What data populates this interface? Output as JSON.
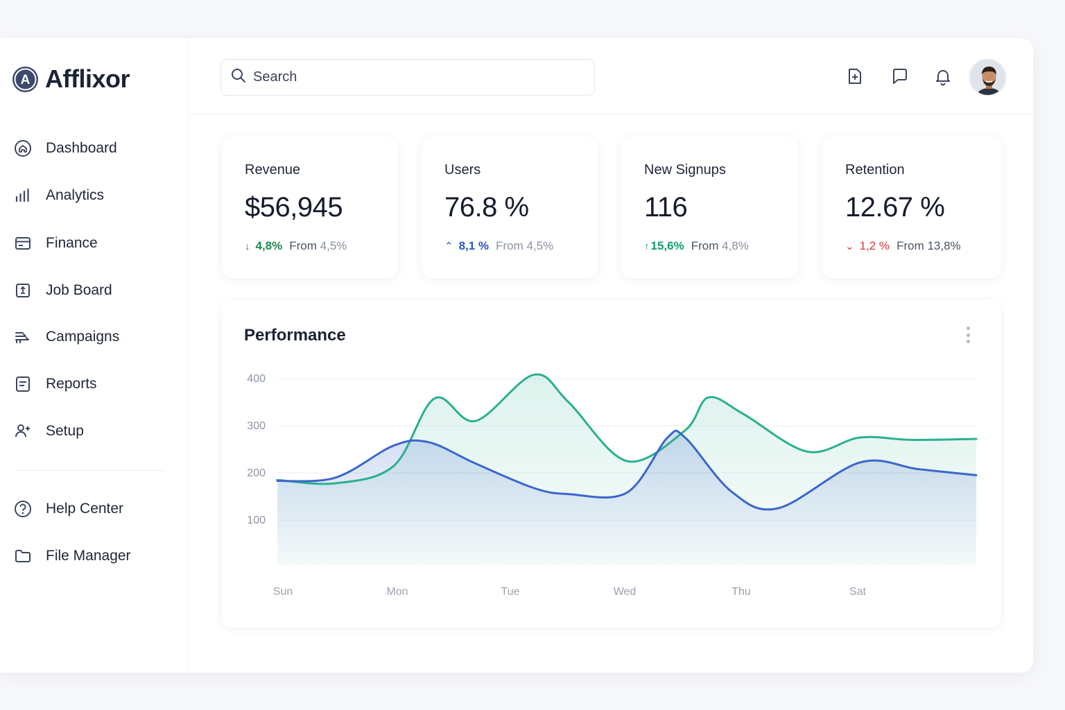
{
  "brand": {
    "name": "Afflixor",
    "logo_letter": "A"
  },
  "sidebar": {
    "items": [
      {
        "label": "Dashboard",
        "icon": "dashboard-icon"
      },
      {
        "label": "Analytics",
        "icon": "bar-chart-icon"
      },
      {
        "label": "Finance",
        "icon": "credit-card-icon"
      },
      {
        "label": "Job Board",
        "icon": "clipboard-icon"
      },
      {
        "label": "Campaigns",
        "icon": "route-icon"
      },
      {
        "label": "Reports",
        "icon": "document-icon"
      },
      {
        "label": "Setup",
        "icon": "user-add-icon"
      }
    ],
    "secondary": [
      {
        "label": "Help Center",
        "icon": "help-icon"
      },
      {
        "label": "File Manager",
        "icon": "folder-icon"
      }
    ]
  },
  "search": {
    "placeholder": "Search"
  },
  "topbar": {
    "icons": [
      "add-document-icon",
      "chat-icon",
      "bell-icon",
      "avatar"
    ]
  },
  "stats": [
    {
      "title": "Revenue",
      "value": "$56,945",
      "arrow": "↓",
      "delta": "4,8%",
      "from_label": "From",
      "from_value": "4,5%",
      "color": "#1e8a52"
    },
    {
      "title": "Users",
      "value": "76.8 %",
      "arrow": "⌃",
      "delta": "8,1 %",
      "from_label": "From",
      "from_value": "4,5%",
      "color": "#2a56c6"
    },
    {
      "title": "New Signups",
      "value": "116",
      "arrow": "↑",
      "delta": "15,6%",
      "from_label": "From",
      "from_value": "4,8%",
      "color": "#12a06a"
    },
    {
      "title": "Retention",
      "value": "12.67 %",
      "arrow": "⌄",
      "delta": "1,2 %",
      "from_label": "From",
      "from_value": "13,8%",
      "color": "#d43a3a"
    }
  ],
  "performance": {
    "title": "Performance"
  },
  "chart_data": {
    "type": "area",
    "title": "Performance",
    "categories": [
      "Sun",
      "Mon",
      "Tue",
      "Wed",
      "Thu",
      "Sat"
    ],
    "yticks": [
      100,
      200,
      300,
      400
    ],
    "ylim": [
      0,
      400
    ],
    "grid": true,
    "colors": {
      "green": "#2bb08f",
      "blue": "#3a66cc"
    },
    "series": [
      {
        "x": [
          0,
          0.5,
          1,
          1.35,
          1.7,
          2.2,
          2.5,
          3.0,
          3.5,
          3.7,
          4.0,
          4.55,
          5.0,
          5.45,
          6.0
        ],
        "values": [
          185,
          178,
          215,
          358,
          310,
          408,
          350,
          225,
          290,
          360,
          325,
          245,
          275,
          270,
          272
        ],
        "color": "green"
      },
      {
        "x": [
          0,
          0.5,
          1,
          1.3,
          1.7,
          2.2,
          2.5,
          3.0,
          3.35,
          3.5,
          3.9,
          4.3,
          5.0,
          5.5,
          6.0
        ],
        "values": [
          183,
          190,
          258,
          265,
          220,
          168,
          155,
          158,
          275,
          275,
          160,
          125,
          222,
          208,
          195
        ],
        "color": "blue"
      }
    ]
  }
}
